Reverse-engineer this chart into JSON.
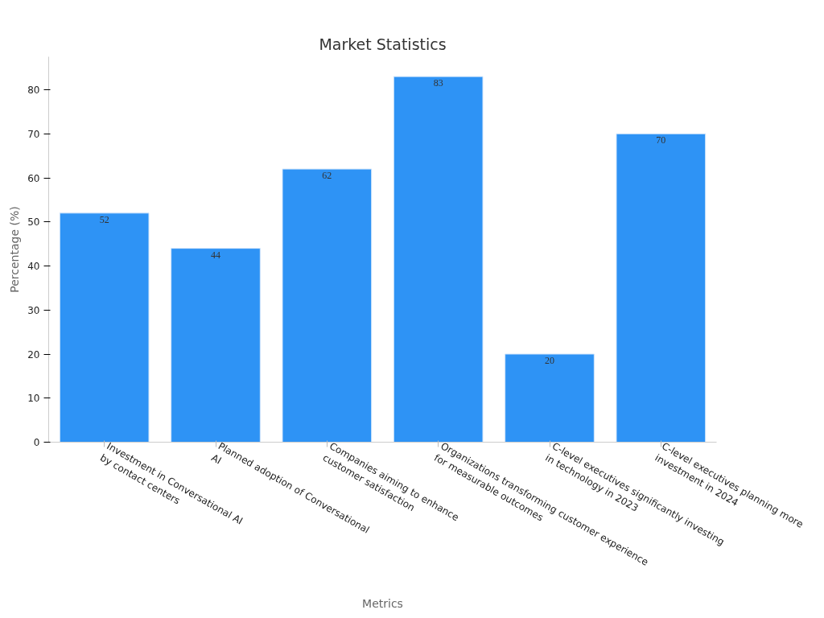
{
  "chart_data": {
    "type": "bar",
    "title": "Market Statistics",
    "xlabel": "Metrics",
    "ylabel": "Percentage (%)",
    "categories": [
      "Investment in Conversational AI\nby contact centers",
      "Planned adoption of Conversational\nAI",
      "Companies aiming to enhance\ncustomer satisfaction",
      "Organizations transforming customer experience\nfor measurable outcomes",
      "C-level executives significantly investing\nin technology in 2023",
      "C-level executives planning more\ninvestment in 2024"
    ],
    "values": [
      52,
      44,
      62,
      83,
      20,
      70
    ],
    "color": "#2e93f5",
    "ylim": [
      0,
      87.5
    ],
    "yticks": [
      0,
      10,
      20,
      30,
      40,
      50,
      60,
      70,
      80
    ],
    "grid": false,
    "data_labels": true
  }
}
